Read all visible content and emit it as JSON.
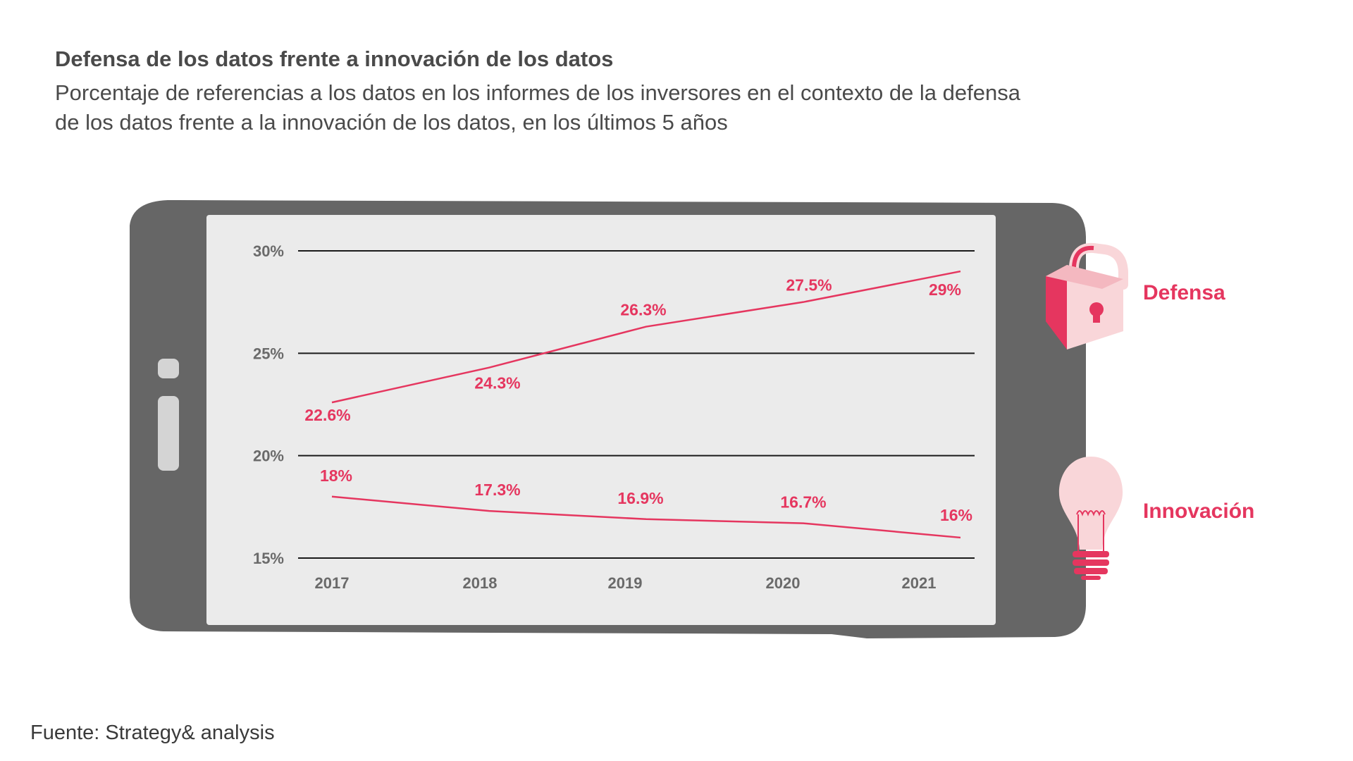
{
  "title": "Defensa de los datos frente a innovación de los datos",
  "subtitle": "Porcentaje de referencias a los datos en los informes de los inversores en el contexto de la defensa de los datos frente a la innovación de los datos, en los últimos 5 años",
  "source": "Fuente: Strategy& analysis",
  "colors": {
    "accent": "#e5365f",
    "phone": "#666666",
    "screen": "#ebebeb",
    "icon_light": "#f9d6d9",
    "icon_dark": "#e5365f"
  },
  "legend": {
    "defensa": {
      "label": "Defensa",
      "icon": "lock-icon"
    },
    "innovacion": {
      "label": "Innovación",
      "icon": "lightbulb-icon"
    }
  },
  "chart_data": {
    "type": "line",
    "title": "Defensa de los datos frente a innovación de los datos",
    "xlabel": "",
    "ylabel": "",
    "x": [
      "2017",
      "2018",
      "2019",
      "2020",
      "2021"
    ],
    "ylim": [
      15,
      30
    ],
    "yticks": [
      15,
      20,
      25,
      30
    ],
    "ytick_labels": [
      "15%",
      "20%",
      "25%",
      "30%"
    ],
    "grid": true,
    "legend_placement": "right",
    "series": [
      {
        "name": "Defensa",
        "values": [
          22.6,
          24.3,
          26.3,
          27.5,
          29
        ],
        "labels": [
          "22.6%",
          "24.3%",
          "26.3%",
          "27.5%",
          "29%"
        ]
      },
      {
        "name": "Innovación",
        "values": [
          18,
          17.3,
          16.9,
          16.7,
          16
        ],
        "labels": [
          "18%",
          "17.3%",
          "16.9%",
          "16.7%",
          "16%"
        ]
      }
    ]
  }
}
